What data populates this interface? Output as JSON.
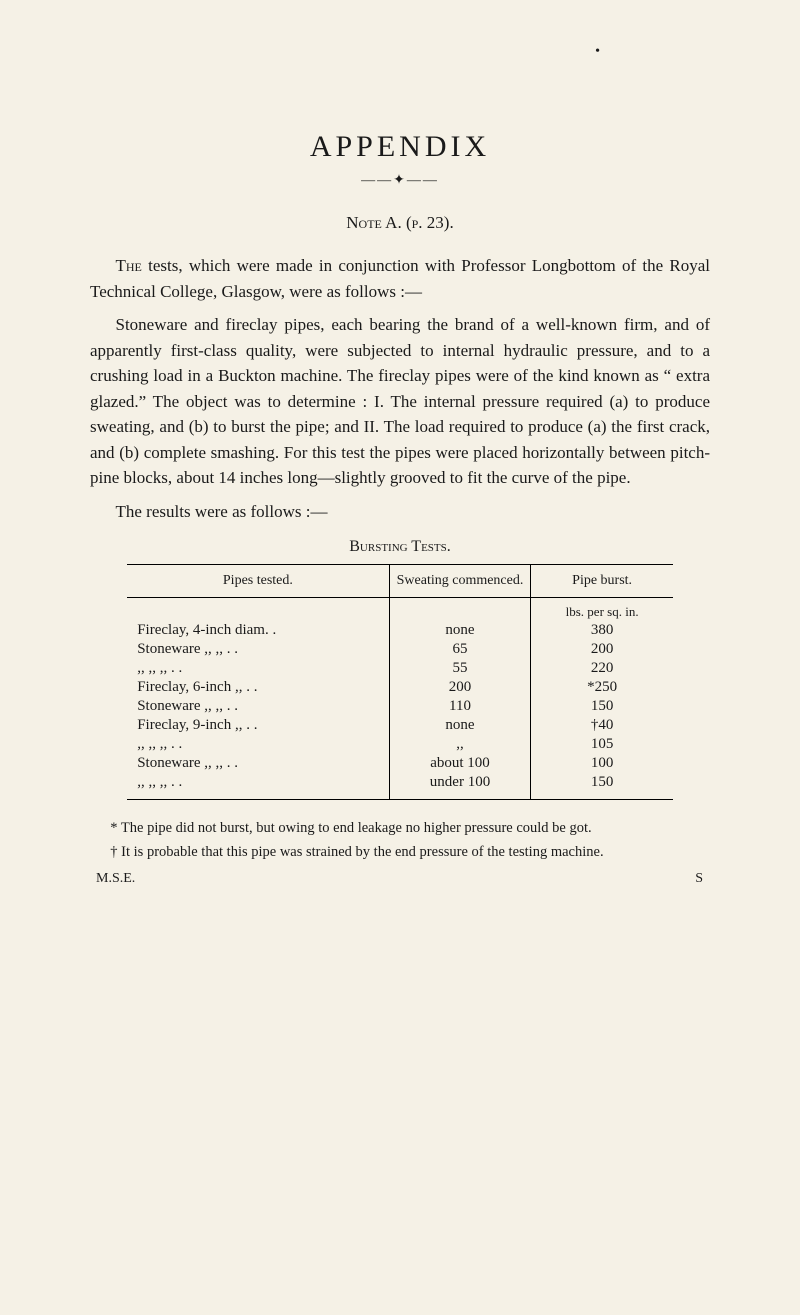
{
  "dot": "•",
  "title": "APPENDIX",
  "ornament": "——✦——",
  "noteLabel": "Note A. (p. 23).",
  "para1_lead": "The",
  "para1_rest": " tests, which were made in conjunction with Professor Longbottom of the Royal Technical College, Glasgow, were as follows :—",
  "para2": "Stoneware and fireclay pipes, each bearing the brand of a well-known firm, and of apparently first-class quality, were subjected to internal hydraulic pressure, and to a crushing load in a Buckton machine. The fireclay pipes were of the kind known as “ extra glazed.” The object was to determine : I. The internal pressure required (a) to produce sweating, and (b) to burst the pipe; and II. The load required to produce (a) the first crack, and (b) complete smashing. For this test the pipes were placed horizontally between pitch-pine blocks, about 14 inches long—slightly grooved to fit the curve of the pipe.",
  "para3": "The results were as follows :—",
  "tableCaption": "Bursting Tests.",
  "headers": {
    "pipes": "Pipes tested.",
    "sweat": "Sweating commenced.",
    "burst": "Pipe burst."
  },
  "unitLabel": "lbs. per sq. in.",
  "rows": [
    {
      "c1": "Fireclay, 4-inch diam. .",
      "c2": "none",
      "c3": "380"
    },
    {
      "c1": "Stoneware  ,,      ,,    . .",
      "c2": "65",
      "c3": "200"
    },
    {
      "c1": "     ,,       ,,      ,,     . .",
      "c2": "55",
      "c3": "220"
    },
    {
      "c1": "Fireclay, 6-inch  ,,    . .",
      "c2": "200",
      "c3": "*250"
    },
    {
      "c1": "Stoneware  ,,      ,,    . .",
      "c2": "110",
      "c3": "150"
    },
    {
      "c1": "Fireclay, 9-inch  ,,    . .",
      "c2": "none",
      "c3": "†40"
    },
    {
      "c1": "     ,,       ,,      ,,    . .",
      "c2": ",,",
      "c3": "105"
    },
    {
      "c1": "Stoneware  ,,      ,,    . .",
      "c2": "about 100",
      "c3": "100"
    },
    {
      "c1": "     ,,       ,,      ,,    . .",
      "c2": "under 100",
      "c3": "150"
    }
  ],
  "fn1": "* The pipe did not burst, but owing to end leakage no higher pressure could be got.",
  "fn2": "† It is probable that this pipe was strained by the end pressure of the testing machine.",
  "foot_left": "M.S.E.",
  "foot_right": "S"
}
